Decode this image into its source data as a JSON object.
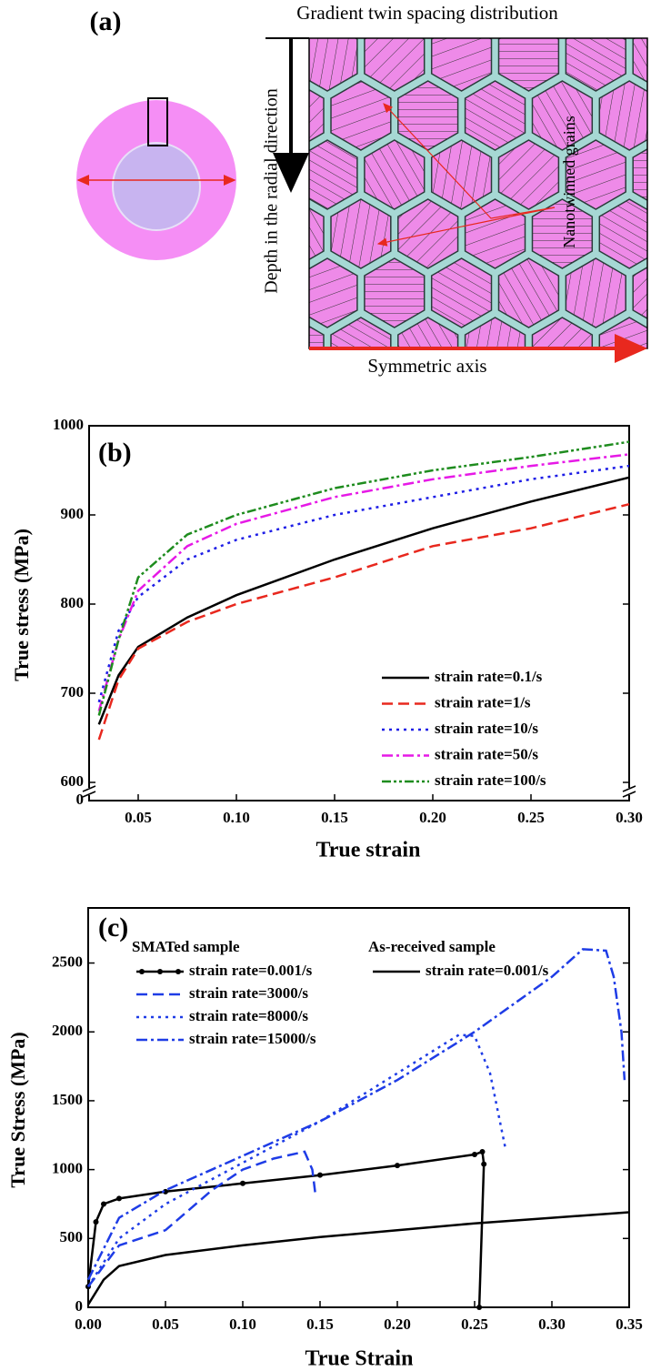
{
  "diagram": {
    "panel_label": "(a)",
    "title": "Gradient twin spacing distribution",
    "depth_label": "Depth in the radial direction",
    "grains_label": "Nanotwinned grains",
    "axis_label": "Symmetric axis"
  },
  "chart_data": [
    {
      "type": "line",
      "panel_label": "(b)",
      "x_label": "True strain",
      "y_label": "True stress (MPa)",
      "xlim": [
        0.025,
        0.3
      ],
      "ylim": [
        0,
        1000
      ],
      "y_break": [
        0,
        600
      ],
      "xticks": [
        0.05,
        {
          "value": 0.1,
          "label": "0.10"
        },
        0.15,
        {
          "value": 0.2,
          "label": "0.20"
        },
        0.25,
        {
          "value": 0.3,
          "label": "0.30"
        }
      ],
      "yticks": [
        0,
        600,
        700,
        800,
        900,
        1000
      ],
      "grid": false,
      "legend": "lower right",
      "x": [
        0.03,
        0.04,
        0.05,
        0.075,
        0.1,
        0.15,
        0.2,
        0.25,
        0.3
      ],
      "series": [
        {
          "name": "strain rate=0.1/s",
          "color": "#000000",
          "dash": "solid",
          "values": [
            665,
            720,
            752,
            785,
            810,
            850,
            885,
            915,
            942
          ]
        },
        {
          "name": "strain rate=1/s",
          "color": "#e8281e",
          "dash": "dashed",
          "values": [
            648,
            715,
            750,
            780,
            800,
            830,
            865,
            885,
            912
          ]
        },
        {
          "name": "strain rate=10/s",
          "color": "#1e1ee6",
          "dash": "dotted",
          "values": [
            690,
            770,
            808,
            850,
            872,
            900,
            920,
            940,
            955
          ]
        },
        {
          "name": "strain rate=50/s",
          "color": "#e619e6",
          "dash": "dashdot",
          "values": [
            680,
            760,
            815,
            865,
            890,
            920,
            940,
            955,
            968
          ]
        },
        {
          "name": "strain rate=100/s",
          "color": "#1e8c1e",
          "dash": "dashdotdot",
          "values": [
            675,
            760,
            830,
            878,
            900,
            930,
            950,
            965,
            982
          ]
        }
      ]
    },
    {
      "type": "line",
      "panel_label": "(c)",
      "x_label": "True Strain",
      "y_label": "True Stress (MPa)",
      "xlim": [
        0,
        0.35
      ],
      "ylim": [
        0,
        2900
      ],
      "xticks": [
        {
          "value": 0,
          "label": "0.00"
        },
        0.05,
        {
          "value": 0.1,
          "label": "0.10"
        },
        0.15,
        {
          "value": 0.2,
          "label": "0.20"
        },
        0.25,
        {
          "value": 0.3,
          "label": "0.30"
        },
        0.35
      ],
      "yticks": [
        0,
        500,
        1000,
        1500,
        2000,
        2500
      ],
      "grid": false,
      "legend": "upper left",
      "groups": [
        {
          "title": "SMATed sample",
          "series": [
            {
              "name": "strain rate=0.001/s",
              "color": "#000000",
              "dash": "solid",
              "marker": "circle",
              "x": [
                0,
                0.005,
                0.01,
                0.02,
                0.05,
                0.1,
                0.15,
                0.2,
                0.25,
                0.255,
                0.256,
                0.253
              ],
              "values": [
                150,
                620,
                750,
                790,
                840,
                900,
                960,
                1030,
                1110,
                1130,
                1040,
                0
              ]
            },
            {
              "name": "strain rate=3000/s",
              "color": "#1e3ce6",
              "dash": "dashed",
              "x": [
                0,
                0.02,
                0.05,
                0.08,
                0.1,
                0.12,
                0.14,
                0.145,
                0.147
              ],
              "values": [
                150,
                450,
                560,
                850,
                1000,
                1080,
                1130,
                1000,
                820
              ]
            },
            {
              "name": "strain rate=8000/s",
              "color": "#1e3ce6",
              "dash": "dotted",
              "x": [
                0,
                0.02,
                0.05,
                0.1,
                0.15,
                0.2,
                0.24,
                0.25,
                0.26,
                0.27
              ],
              "values": [
                150,
                500,
                750,
                1050,
                1350,
                1700,
                1980,
                1970,
                1700,
                1150
              ]
            },
            {
              "name": "strain rate=15000/s",
              "color": "#1e3ce6",
              "dash": "dashdot",
              "x": [
                0,
                0.02,
                0.05,
                0.1,
                0.15,
                0.2,
                0.25,
                0.3,
                0.32,
                0.335,
                0.34,
                0.345,
                0.347
              ],
              "values": [
                200,
                650,
                850,
                1100,
                1350,
                1650,
                2000,
                2400,
                2600,
                2590,
                2400,
                2000,
                1650
              ]
            }
          ]
        },
        {
          "title": "As-received sample",
          "series": [
            {
              "name": "strain rate=0.001/s",
              "color": "#000000",
              "dash": "solid",
              "x": [
                0,
                0.01,
                0.02,
                0.05,
                0.1,
                0.15,
                0.2,
                0.25,
                0.3,
                0.35
              ],
              "values": [
                20,
                200,
                300,
                380,
                450,
                510,
                560,
                610,
                650,
                690
              ]
            }
          ]
        }
      ]
    }
  ]
}
